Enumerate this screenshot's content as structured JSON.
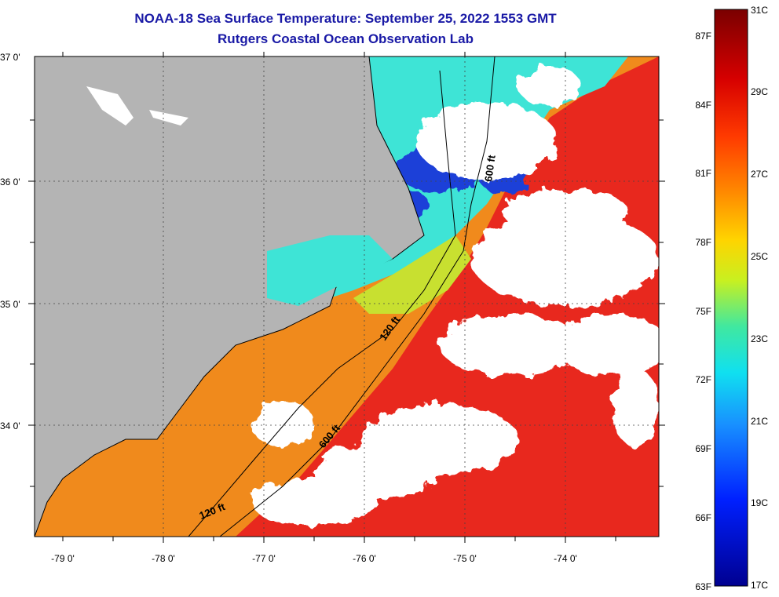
{
  "title_line1": "NOAA-18 Sea Surface Temperature:  September 25, 2022 1553 GMT",
  "title_line2": "Rutgers Coastal Ocean Observation Lab",
  "lat_labels": [
    "37 0'",
    "36 0'",
    "35 0'",
    "34 0'"
  ],
  "lon_labels": [
    "-79 0'",
    "-78 0'",
    "-77 0'",
    "-76 0'",
    "-75 0'",
    "-74 0'"
  ],
  "contour_labels": {
    "depth_600_north": "600 ft",
    "depth_120_mid": "120 ft",
    "depth_600_south": "600 ft",
    "depth_120_south": "120 ft"
  },
  "colorbar": {
    "fahrenheit": [
      "87F",
      "84F",
      "81F",
      "78F",
      "75F",
      "72F",
      "69F",
      "66F",
      "63F"
    ],
    "celsius": [
      "31C",
      "29C",
      "27C",
      "25C",
      "23C",
      "21C",
      "19C",
      "17C"
    ]
  },
  "colors": {
    "land": "#b4b4b4",
    "cloud": "#ffffff",
    "warm": "#e8231e",
    "orange": "#f08a1c",
    "cyan": "#3ee8d8"
  }
}
